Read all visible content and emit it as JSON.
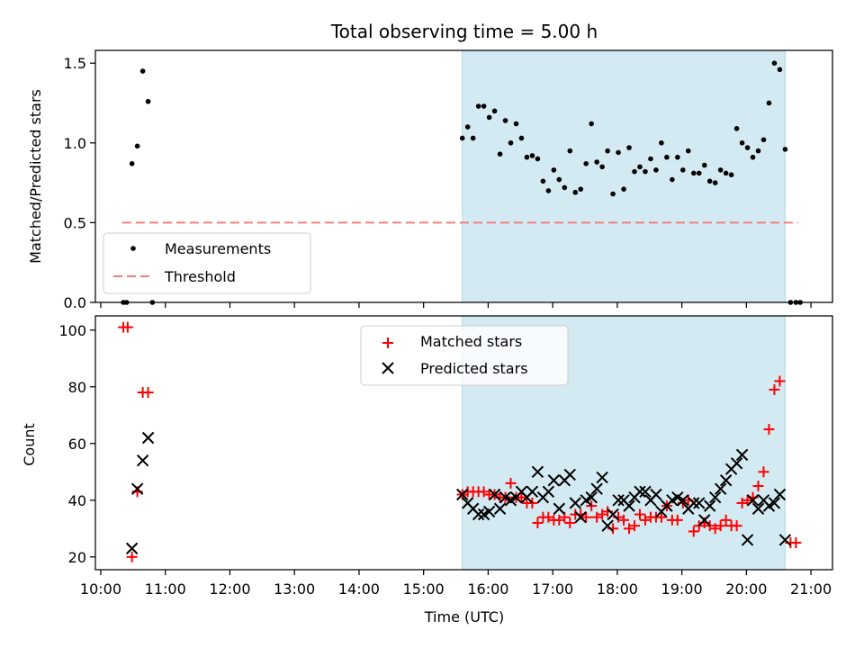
{
  "chart_data": [
    {
      "type": "scatter",
      "title": "Total observing time = 5.00 h",
      "xlabel": "",
      "ylabel": "Matched/Predicted stars",
      "ylim": [
        0,
        1.58
      ],
      "yticks": [
        0.0,
        0.5,
        1.0,
        1.5
      ],
      "ytick_labels": [
        "0.0",
        "0.5",
        "1.0",
        "1.5"
      ],
      "legend_position": "lower-left",
      "shaded_region": {
        "x_start": "15:36",
        "x_end": "20:36",
        "color": "#d4eaf2"
      },
      "threshold": {
        "name": "Threshold",
        "value": 0.5,
        "x_start": "10:20",
        "x_end": "20:48",
        "color": "#f08080"
      },
      "series": [
        {
          "name": "Measurements",
          "color": "#000000",
          "x": [
            "10:21",
            "10:24",
            "10:29",
            "10:34",
            "10:39",
            "10:44",
            "10:48",
            "15:36",
            "15:41",
            "15:46",
            "15:51",
            "15:56",
            "16:01",
            "16:06",
            "16:11",
            "16:16",
            "16:21",
            "16:26",
            "16:31",
            "16:36",
            "16:41",
            "16:46",
            "16:51",
            "16:56",
            "17:01",
            "17:06",
            "17:11",
            "17:16",
            "17:21",
            "17:26",
            "17:31",
            "17:36",
            "17:41",
            "17:46",
            "17:51",
            "17:56",
            "18:01",
            "18:06",
            "18:11",
            "18:16",
            "18:21",
            "18:26",
            "18:31",
            "18:36",
            "18:41",
            "18:46",
            "18:51",
            "18:56",
            "19:01",
            "19:06",
            "19:11",
            "19:16",
            "19:21",
            "19:26",
            "19:31",
            "19:36",
            "19:41",
            "19:46",
            "19:51",
            "19:56",
            "20:01",
            "20:06",
            "20:11",
            "20:16",
            "20:21",
            "20:26",
            "20:31",
            "20:36",
            "20:41",
            "20:46",
            "20:50"
          ],
          "y": [
            0.0,
            0.0,
            0.87,
            0.98,
            1.45,
            1.26,
            0.0,
            1.03,
            1.1,
            1.03,
            1.23,
            1.23,
            1.16,
            1.2,
            0.93,
            1.14,
            1.0,
            1.12,
            1.03,
            0.91,
            0.92,
            0.9,
            0.76,
            0.7,
            0.83,
            0.77,
            0.72,
            0.95,
            0.69,
            0.71,
            0.87,
            1.12,
            0.88,
            0.85,
            0.95,
            0.68,
            0.94,
            0.71,
            0.97,
            0.82,
            0.85,
            0.82,
            0.9,
            0.83,
            1.0,
            0.91,
            0.77,
            0.91,
            0.83,
            0.95,
            0.81,
            0.81,
            0.86,
            0.76,
            0.75,
            0.83,
            0.81,
            0.8,
            1.09,
            1.0,
            0.97,
            0.91,
            0.95,
            1.02,
            1.25,
            1.5,
            1.46,
            0.96,
            0.0,
            0.0,
            0.0
          ]
        }
      ]
    },
    {
      "type": "scatter",
      "title": "",
      "xlabel": "Time (UTC)",
      "ylabel": "Count",
      "ylim": [
        15.5,
        105
      ],
      "yticks": [
        20,
        40,
        60,
        80,
        100
      ],
      "ytick_labels": [
        "20",
        "40",
        "60",
        "80",
        "100"
      ],
      "xlim": [
        "09:55",
        "21:20"
      ],
      "xticks": [
        "10:00",
        "11:00",
        "12:00",
        "13:00",
        "14:00",
        "15:00",
        "16:00",
        "17:00",
        "18:00",
        "19:00",
        "20:00",
        "21:00"
      ],
      "xtick_labels": [
        "10:00",
        "11:00",
        "12:00",
        "13:00",
        "14:00",
        "15:00",
        "16:00",
        "17:00",
        "18:00",
        "19:00",
        "20:00",
        "21:00"
      ],
      "legend_position": "upper-center",
      "shaded_region": {
        "x_start": "15:36",
        "x_end": "20:36",
        "color": "#d4eaf2"
      },
      "series": [
        {
          "name": "Matched stars",
          "marker": "plus",
          "color": "#ff0000",
          "x": [
            "10:21",
            "10:25",
            "10:29",
            "10:34",
            "10:39",
            "10:44",
            "15:36",
            "15:41",
            "15:46",
            "15:51",
            "15:56",
            "16:01",
            "16:06",
            "16:11",
            "16:16",
            "16:21",
            "16:26",
            "16:31",
            "16:36",
            "16:41",
            "16:46",
            "16:51",
            "16:56",
            "17:01",
            "17:06",
            "17:11",
            "17:16",
            "17:21",
            "17:26",
            "17:31",
            "17:36",
            "17:41",
            "17:46",
            "17:51",
            "17:56",
            "18:01",
            "18:06",
            "18:11",
            "18:16",
            "18:21",
            "18:26",
            "18:31",
            "18:36",
            "18:41",
            "18:46",
            "18:51",
            "18:56",
            "19:01",
            "19:06",
            "19:11",
            "19:16",
            "19:21",
            "19:26",
            "19:31",
            "19:36",
            "19:41",
            "19:46",
            "19:51",
            "19:56",
            "20:01",
            "20:06",
            "20:11",
            "20:16",
            "20:21",
            "20:26",
            "20:31",
            "20:41",
            "20:46"
          ],
          "y": [
            101,
            101,
            20,
            43,
            78,
            78,
            42,
            43,
            43,
            43,
            43,
            42,
            42,
            41,
            41,
            46,
            41,
            41,
            39,
            39,
            32,
            34,
            34,
            33,
            33,
            34,
            32,
            35,
            35,
            34,
            38,
            34,
            35,
            36,
            30,
            34,
            33,
            30,
            31,
            35,
            33,
            34,
            34,
            34,
            38,
            33,
            33,
            39,
            40,
            29,
            31,
            32,
            31,
            30,
            31,
            33,
            31,
            31,
            39,
            40,
            41,
            45,
            50,
            65,
            79,
            82,
            25,
            25
          ]
        },
        {
          "name": "Predicted stars",
          "marker": "x",
          "color": "#000000",
          "x": [
            "10:29",
            "10:34",
            "10:39",
            "10:44",
            "15:36",
            "15:41",
            "15:46",
            "15:51",
            "15:56",
            "16:01",
            "16:06",
            "16:11",
            "16:16",
            "16:21",
            "16:26",
            "16:31",
            "16:36",
            "16:41",
            "16:46",
            "16:51",
            "16:56",
            "17:01",
            "17:06",
            "17:11",
            "17:16",
            "17:21",
            "17:26",
            "17:31",
            "17:36",
            "17:41",
            "17:46",
            "17:51",
            "17:56",
            "18:01",
            "18:06",
            "18:11",
            "18:16",
            "18:21",
            "18:26",
            "18:31",
            "18:36",
            "18:41",
            "18:46",
            "18:51",
            "18:56",
            "19:01",
            "19:06",
            "19:11",
            "19:16",
            "19:21",
            "19:26",
            "19:31",
            "19:36",
            "19:41",
            "19:46",
            "19:51",
            "19:56",
            "20:01",
            "20:06",
            "20:11",
            "20:16",
            "20:21",
            "20:26",
            "20:31",
            "20:36"
          ],
          "y": [
            23,
            44,
            54,
            62,
            42,
            39,
            37,
            35,
            35,
            36,
            42,
            37,
            41,
            40,
            41,
            43,
            41,
            43,
            50,
            41,
            43,
            47,
            37,
            47,
            49,
            39,
            34,
            40,
            41,
            44,
            48,
            31,
            35,
            40,
            40,
            38,
            41,
            43,
            43,
            40,
            42,
            36,
            38,
            40,
            41,
            40,
            37,
            39,
            39,
            33,
            38,
            41,
            44,
            47,
            51,
            53,
            56,
            26,
            40,
            37,
            40,
            38,
            39,
            42,
            26
          ]
        }
      ]
    }
  ]
}
